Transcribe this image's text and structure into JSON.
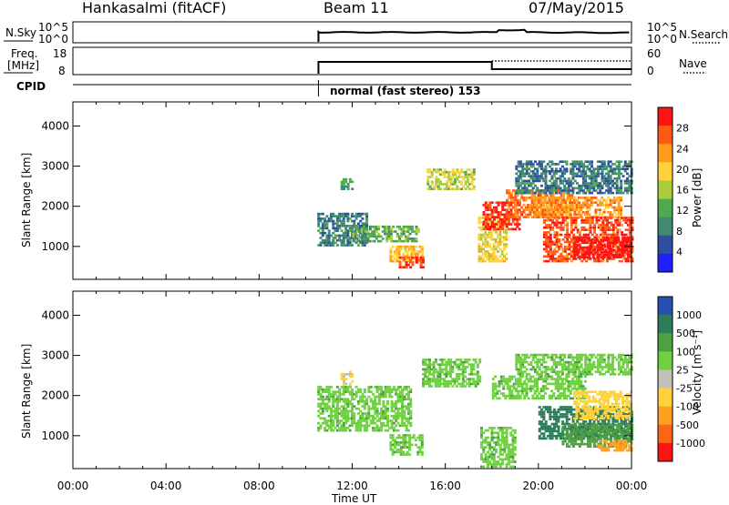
{
  "header": {
    "station": "Hankasalmi (fitACF)",
    "beam": "Beam 11",
    "date": "07/May/2015"
  },
  "panels": {
    "nsky_label": "N.Sky",
    "nsky_ticks": [
      "10^5",
      "10^0"
    ],
    "nsearch_label": "N.Search",
    "freq_label_1": "Freq.",
    "freq_label_2": "[MHz]",
    "freq_ticks": [
      "18",
      "8"
    ],
    "nave_label": "Nave",
    "nave_ticks": [
      "60",
      "0"
    ],
    "cpid_label": "CPID",
    "cpid_text": "normal (fast stereo) 153"
  },
  "colors": {
    "power_scale": [
      "#1f1fff",
      "#2f4fa0",
      "#3f8a70",
      "#4faa4f",
      "#a8cc3c",
      "#ffd23c",
      "#ff9c1c",
      "#ff5a14",
      "#ff1414"
    ],
    "velocity_scale": [
      "#2850b4",
      "#2c7d5a",
      "#4fa040",
      "#6fd040",
      "#c0c0b8",
      "#ffd23c",
      "#ffa020",
      "#ff6414",
      "#ff1414"
    ],
    "ground_scatter": "#c0c0b8"
  },
  "chart_data": [
    {
      "type": "heatmap",
      "title": "Power",
      "xlabel": "Time UT",
      "ylabel": "Slant Range [km]",
      "x_ticks": [
        "00:00",
        "04:00",
        "08:00",
        "12:00",
        "16:00",
        "20:00",
        "00:00"
      ],
      "y_ticks": [
        "1000",
        "2000",
        "3000",
        "4000"
      ],
      "ylim": [
        180,
        4600
      ],
      "colorbar": {
        "label": "Power [dB]",
        "ticks": [
          "4",
          "8",
          "12",
          "16",
          "20",
          "24",
          "28"
        ]
      },
      "regions": [
        {
          "t": [
            10.5,
            12.6
          ],
          "r": [
            1000,
            1800
          ],
          "v": 6
        },
        {
          "t": [
            11.5,
            12.0
          ],
          "r": [
            2400,
            2700
          ],
          "v": 8
        },
        {
          "t": [
            12.0,
            14.8
          ],
          "r": [
            1100,
            1500
          ],
          "v": 10
        },
        {
          "t": [
            13.6,
            15.0
          ],
          "r": [
            600,
            1000
          ],
          "v": 18
        },
        {
          "t": [
            14.0,
            15.0
          ],
          "r": [
            450,
            700
          ],
          "v": 24
        },
        {
          "t": [
            15.2,
            17.2
          ],
          "r": [
            2400,
            2900
          ],
          "v": 14
        },
        {
          "t": [
            17.4,
            18.6
          ],
          "r": [
            600,
            1700
          ],
          "v": 16
        },
        {
          "t": [
            17.6,
            19.2
          ],
          "r": [
            1400,
            2100
          ],
          "v": 26
        },
        {
          "t": [
            18.6,
            21.5
          ],
          "r": [
            1700,
            2400
          ],
          "v": 22
        },
        {
          "t": [
            19.0,
            24.0
          ],
          "r": [
            2300,
            3100
          ],
          "v": 6
        },
        {
          "t": [
            19.8,
            23.5
          ],
          "r": [
            1700,
            2200
          ],
          "v": 20
        },
        {
          "t": [
            20.2,
            24.0
          ],
          "r": [
            600,
            1700
          ],
          "v": 24
        },
        {
          "t": [
            21.5,
            24.0
          ],
          "r": [
            700,
            1200
          ],
          "v": 30
        }
      ]
    },
    {
      "type": "heatmap",
      "title": "Velocity",
      "xlabel": "Time UT",
      "ylabel": "Slant Range [km]",
      "x_ticks": [
        "00:00",
        "04:00",
        "08:00",
        "12:00",
        "16:00",
        "20:00",
        "00:00"
      ],
      "y_ticks": [
        "1000",
        "2000",
        "3000",
        "4000"
      ],
      "ylim": [
        180,
        4600
      ],
      "colorbar": {
        "label": "Velocity [m s⁻¹]",
        "ticks": [
          "1000",
          "500",
          "100",
          "25",
          "-25",
          "-100",
          "-500",
          "-1000"
        ]
      },
      "regions": [
        {
          "t": [
            11.5,
            12.0
          ],
          "r": [
            2200,
            2600
          ],
          "v": -120
        },
        {
          "t": [
            10.5,
            14.5
          ],
          "r": [
            1100,
            2200
          ],
          "v": 0
        },
        {
          "t": [
            13.6,
            15.0
          ],
          "r": [
            500,
            1000
          ],
          "v": 0
        },
        {
          "t": [
            15.0,
            17.5
          ],
          "r": [
            2200,
            2900
          ],
          "v": 0
        },
        {
          "t": [
            17.5,
            19.0
          ],
          "r": [
            200,
            1200
          ],
          "v": 0
        },
        {
          "t": [
            18.0,
            22.0
          ],
          "r": [
            1900,
            2500
          ],
          "v": 0
        },
        {
          "t": [
            19.0,
            24.0
          ],
          "r": [
            2500,
            3000
          ],
          "v": 0
        },
        {
          "t": [
            20.0,
            24.0
          ],
          "r": [
            900,
            1700
          ],
          "v": 150
        },
        {
          "t": [
            21.0,
            24.0
          ],
          "r": [
            700,
            1300
          ],
          "v": 60
        },
        {
          "t": [
            21.5,
            24.0
          ],
          "r": [
            1400,
            2100
          ],
          "v": -180
        },
        {
          "t": [
            22.5,
            24.0
          ],
          "r": [
            600,
            900
          ],
          "v": -600
        }
      ]
    }
  ]
}
